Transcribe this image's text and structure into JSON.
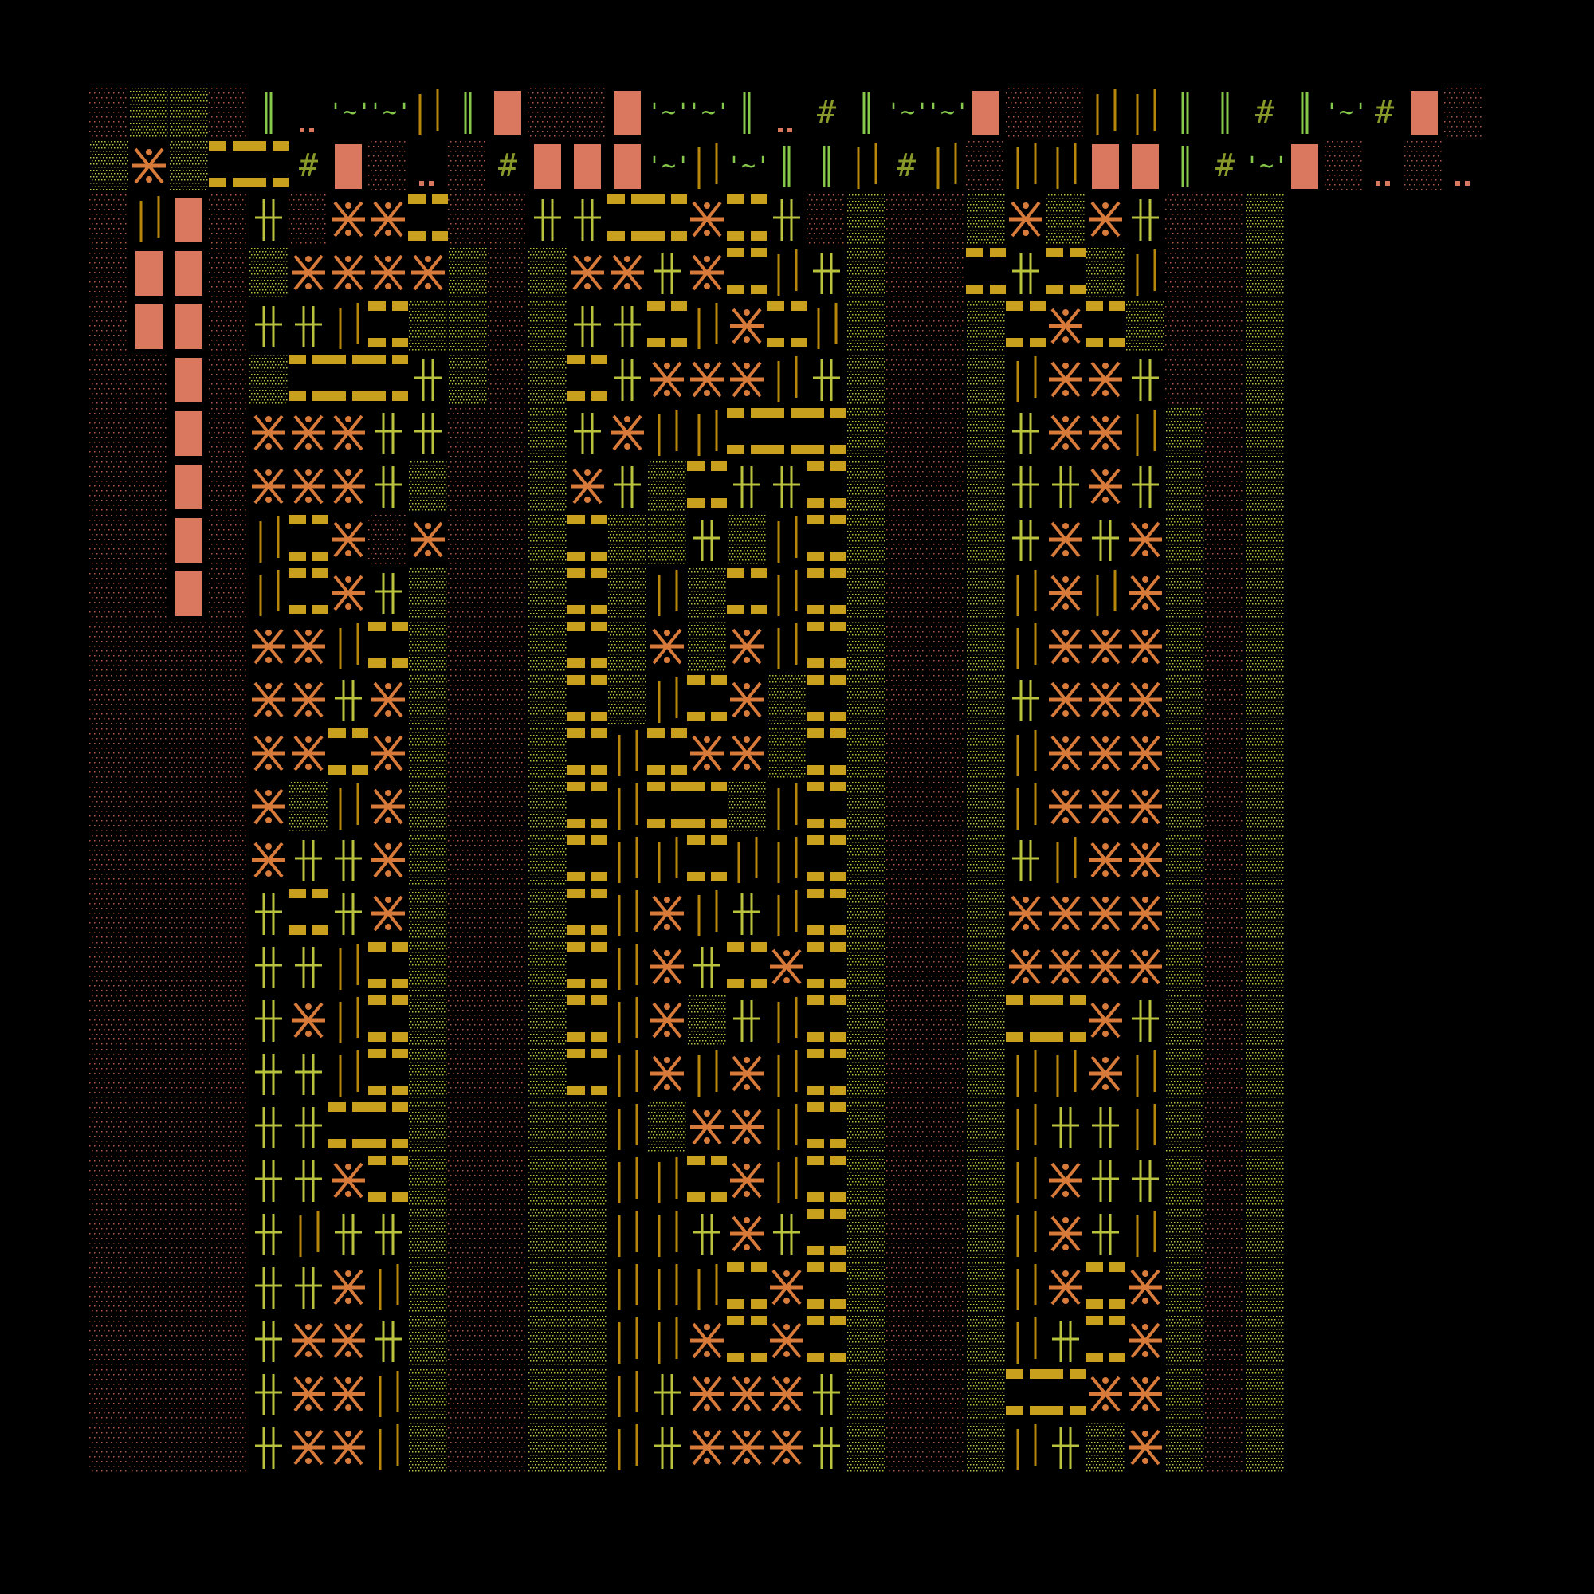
{
  "artwork": {
    "background": "#000000",
    "palette": {
      "salmon": "#d9785f",
      "salmon_dim": "#b5594a",
      "orange": "#d87b3a",
      "mustard": "#c8a01e",
      "amber": "#b8860b",
      "yellow_green": "#b8c23c",
      "green": "#86c84a",
      "olive": "#8a9a2a"
    },
    "columns": 30,
    "rows": 27,
    "top_rows": [
      "sSSsDp~~|DBssB~~Dp%D~~Bss||DD%D~%BsBD%~",
      "SXSoo%Bs.s%BBB~|~DD|%|s||BBD%~Bsps.|~"
    ],
    "column_patterns": [
      "ssssssssssssssssssssssssssssssssss",
      "|BBsssssssssssssssssssssssssss",
      "BBBBBBBBssssssssssssssssssssss",
      "ssssssssssssssssssssssssssssss",
      "+S+SXX||XXXXX+++++++++++++++",
      "sX+oXXooXXXS+o+X+++|+XXXXX",
      "XX|oXXXX|+o|++|||oX+XXXXXX",
      "XXoo++s+oXXXXXooooo+|+||oooooo",
      "oXS++SXSSSSSSSSSSSSSSSSSSSSSS",
      "sSSSssssssssssssssssssssssssss",
      "ssssssssssssssssssssssssssssss",
      "+SSSSSSSSSSSSSSSSSSSSSSSSSSSS",
      "+X+o+XoooooooooooSSSSSSSSSSSS",
      "oX++X+SSSS|||||||||||||||XXXXX",
      "o+oX|SS|X|oo|XXXXS||||++||+|+",
      "XX|X|o+SSoXoo|+S|Xo+|XXXXSXX",
      "ooXXo+SoXXXS|+o+XXXXooXXXXXX",
      "+|o|o+|||SS|||X||||+XXXXXXXXX",
      "s+|+oooooooooooooooooo++SSSSS",
      "SSSSSSSSSSSSSSSSSSSSSSSSSSSSS",
      "sssssssssssssssssssssssssssss",
      "ssssssssssssssssssssssssssssss",
      "SoSSSSSSSSSSSSSSSSSSSSSSSSSSS",
      "X+o|+++||+||+XXo||||||o|+o+X",
      "SoXXX+XXXXXX|XXo|+XXX+o+XXXX",
      "XSoXXX+|XXXXXXXXX+++ooXSSSS",
      "+|S+|+XXXXXXXXX+||+|XXXXXXXX",
      "ssssSSSSSSSSSSSSSSSSSSSSSSSSS",
      "ssssssssssssssssssssssssssss",
      "SSSSSSSSSSSSSSSSSSSSSSSSSSSXX"
    ]
  }
}
